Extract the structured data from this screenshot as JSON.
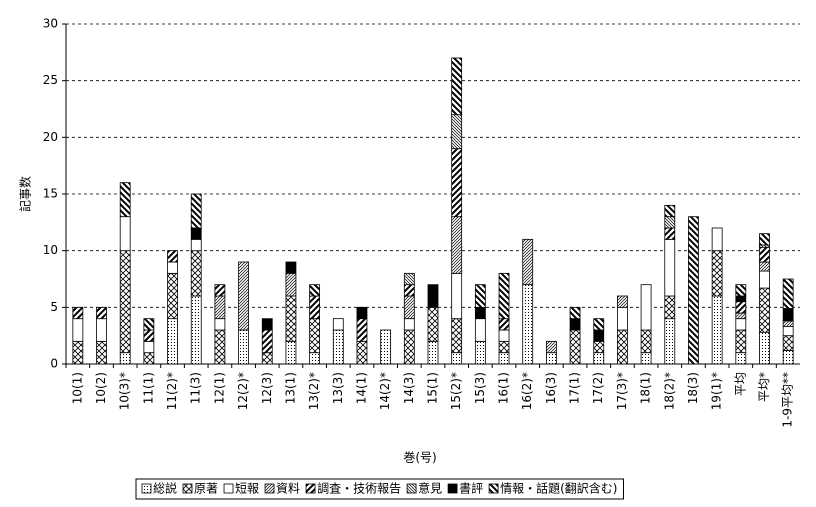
{
  "chart_data": {
    "type": "stacked-bar",
    "x_label": "巻(号)",
    "y_label": "記事数",
    "categories": [
      "10(1)",
      "10(2)",
      "10(3)*",
      "11(1)",
      "11(2)*",
      "11(3)",
      "12(1)",
      "12(2)*",
      "12(3)",
      "13(1)",
      "13(2)*",
      "13(3)",
      "14(1)",
      "14(2)*",
      "14(3)",
      "15(1)",
      "15(2)*",
      "15(3)",
      "16(1)",
      "16(2)*",
      "16(3)",
      "17(1)",
      "17(2)",
      "17(3)*",
      "18(1)",
      "18(2)*",
      "18(3)",
      "19(1)*",
      "平均",
      "平均*",
      "1-9平均**"
    ],
    "ylim": [
      0,
      30
    ],
    "yticks": [
      0,
      5,
      10,
      15,
      20,
      25,
      30
    ],
    "grid": true,
    "series": [
      {
        "name": "総説",
        "color": "#000000",
        "pattern": "dots",
        "values": [
          0,
          0,
          1,
          0,
          4,
          6,
          0,
          3,
          0,
          2,
          1,
          3,
          0,
          3,
          0,
          2,
          1,
          2,
          1,
          7,
          1,
          0,
          1,
          0,
          1,
          4,
          0,
          6,
          1,
          2.8,
          1.2
        ]
      },
      {
        "name": "原著",
        "color": "#000000",
        "pattern": "cross",
        "values": [
          2,
          2,
          9,
          1,
          4,
          4,
          3,
          0,
          1,
          4,
          3,
          0,
          2,
          0,
          3,
          3,
          3,
          0,
          1,
          0,
          0,
          3,
          1,
          3,
          2,
          2,
          0,
          4,
          2,
          3.9,
          1.3
        ]
      },
      {
        "name": "短報",
        "color": "#000000",
        "pattern": "blank",
        "values": [
          2,
          2,
          3,
          1,
          1,
          1,
          1,
          0,
          0,
          0,
          0,
          1,
          0,
          0,
          1,
          0,
          4,
          2,
          1,
          0,
          0,
          0,
          0,
          2,
          4,
          5,
          0,
          2,
          1,
          1.5,
          0.8
        ]
      },
      {
        "name": "資料",
        "color": "#000000",
        "pattern": "dense-fwd",
        "values": [
          0,
          0,
          0,
          0,
          0,
          0,
          2,
          6,
          0,
          2,
          0,
          0,
          0,
          0,
          2,
          0,
          5,
          0,
          0,
          4,
          1,
          0,
          0,
          1,
          0,
          0,
          0,
          0,
          0.5,
          0.8,
          0.5
        ]
      },
      {
        "name": "調査・技術報告",
        "color": "#000000",
        "pattern": "wide-fwd",
        "values": [
          1,
          1,
          0,
          1,
          1,
          0,
          1,
          0,
          2,
          0,
          2,
          0,
          2,
          0,
          1,
          0,
          6,
          0,
          1,
          0,
          0,
          0,
          0,
          0,
          0,
          1,
          0,
          0,
          1,
          1.3,
          0
        ]
      },
      {
        "name": "意見",
        "color": "#000000",
        "pattern": "dense-back",
        "values": [
          0,
          0,
          0,
          0,
          0,
          0,
          0,
          0,
          0,
          0,
          0,
          0,
          0,
          0,
          1,
          0,
          3,
          0,
          0,
          0,
          0,
          0,
          0,
          0,
          0,
          1,
          0,
          0,
          0,
          0.2,
          0
        ]
      },
      {
        "name": "書評",
        "color": "#000000",
        "pattern": "solid",
        "values": [
          0,
          0,
          0,
          0,
          0,
          1,
          0,
          0,
          1,
          1,
          0,
          0,
          1,
          0,
          0,
          2,
          0,
          1,
          0,
          0,
          0,
          1,
          1,
          0,
          0,
          0,
          0,
          0,
          0.5,
          0,
          1.1
        ]
      },
      {
        "name": "情報・話題(翻訳含む)",
        "color": "#000000",
        "pattern": "wide-back",
        "values": [
          0,
          0,
          3,
          1,
          0,
          3,
          0,
          0,
          0,
          0,
          1,
          0,
          0,
          0,
          0,
          0,
          5,
          2,
          4,
          0,
          0,
          1,
          1,
          0,
          0,
          1,
          13,
          0,
          1,
          1.0,
          2.6
        ]
      }
    ]
  }
}
